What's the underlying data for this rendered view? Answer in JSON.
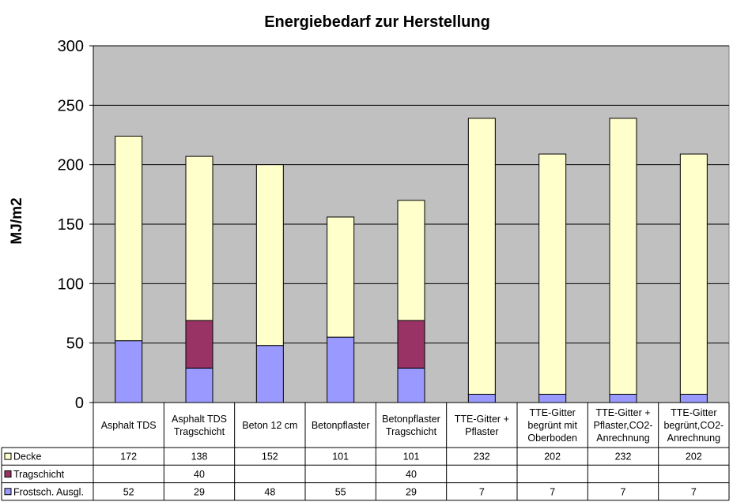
{
  "chart_data": {
    "type": "bar",
    "stacked": true,
    "title": "Energiebedarf zur Herstellung",
    "ylabel": "MJ/m2",
    "xlabel": "",
    "ylim": [
      0,
      300
    ],
    "yticks": [
      "0",
      "50",
      "100",
      "150",
      "200",
      "250",
      "300"
    ],
    "grid": true,
    "plot_background": "#c0c0c0",
    "categories": [
      [
        "Asphalt TDS"
      ],
      [
        "Asphalt TDS",
        "Tragschicht"
      ],
      [
        "Beton 12 cm"
      ],
      [
        "Betonpflaster"
      ],
      [
        "Betonpflaster",
        "Tragschicht"
      ],
      [
        "TTE-Gitter +",
        "Pflaster"
      ],
      [
        "TTE-Gitter",
        "begrünt mit",
        "Oberboden"
      ],
      [
        "TTE-Gitter +",
        "Pflaster,CO2-",
        "Anrechnung"
      ],
      [
        "TTE-Gitter",
        "begrünt,CO2-",
        "Anrechnung"
      ]
    ],
    "series": [
      {
        "name": "Frostsch. Ausgl.",
        "color": "#9999ff",
        "values": [
          52,
          29,
          48,
          55,
          29,
          7,
          7,
          7,
          7
        ],
        "table": [
          "52",
          "29",
          "48",
          "55",
          "29",
          "7",
          "7",
          "7",
          "7"
        ]
      },
      {
        "name": "Tragschicht",
        "color": "#993366",
        "values": [
          0,
          40,
          0,
          0,
          40,
          0,
          0,
          0,
          0
        ],
        "table": [
          "",
          "40",
          "",
          "",
          "40",
          "",
          "",
          "",
          ""
        ]
      },
      {
        "name": "Decke",
        "color": "#ffffcc",
        "values": [
          172,
          138,
          152,
          101,
          101,
          232,
          202,
          232,
          202
        ],
        "table": [
          "172",
          "138",
          "152",
          "101",
          "101",
          "232",
          "202",
          "232",
          "202"
        ]
      }
    ]
  }
}
